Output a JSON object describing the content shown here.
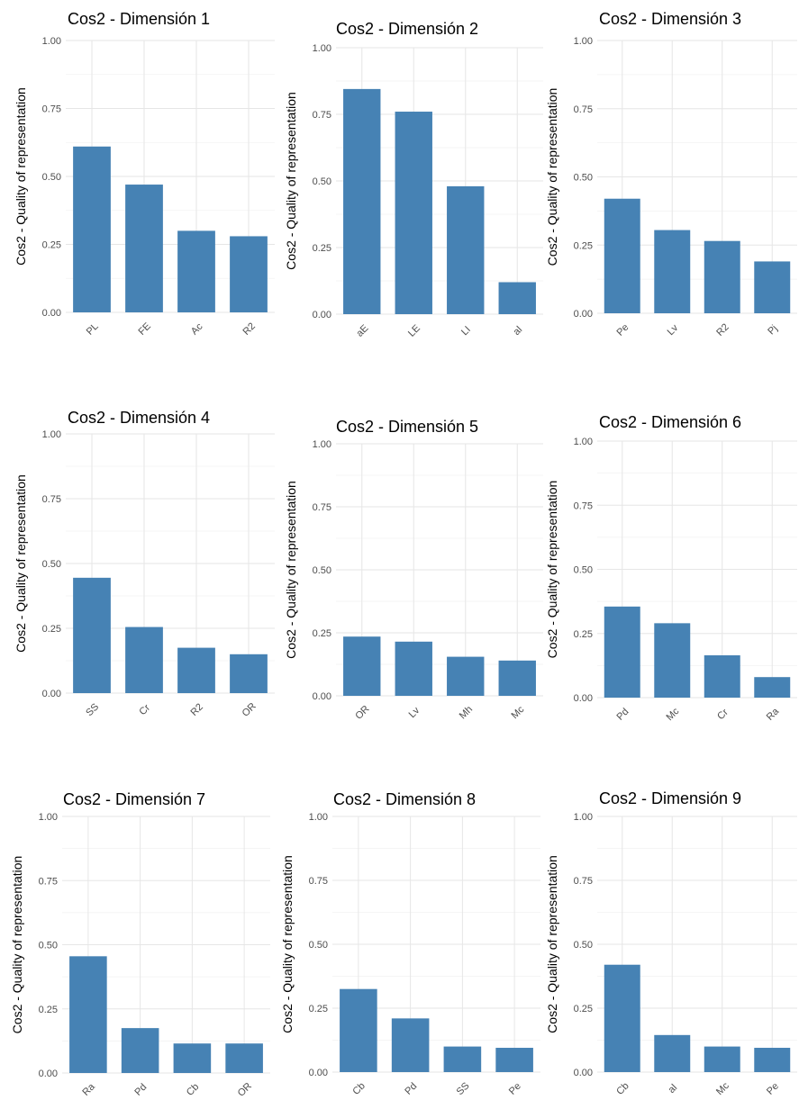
{
  "chart_data": [
    {
      "type": "bar",
      "title": "Cos2 - Dimensión 1",
      "ylabel": "Cos2 - Quality of representation",
      "ylim": [
        0,
        1.0
      ],
      "yticks": [
        "0.00",
        "0.25",
        "0.50",
        "0.75",
        "1.00"
      ],
      "categories": [
        "PL",
        "FE",
        "Ac",
        "R2"
      ],
      "values": [
        0.61,
        0.47,
        0.3,
        0.28
      ],
      "color": "#4682B4"
    },
    {
      "type": "bar",
      "title": "Cos2 - Dimensión 2",
      "ylabel": "Cos2 - Quality of representation",
      "ylim": [
        0,
        1.0
      ],
      "yticks": [
        "0.00",
        "0.25",
        "0.50",
        "0.75",
        "1.00"
      ],
      "categories": [
        "aE",
        "LE",
        "LI",
        "al"
      ],
      "values": [
        0.845,
        0.76,
        0.48,
        0.12
      ],
      "color": "#4682B4"
    },
    {
      "type": "bar",
      "title": "Cos2 - Dimensión 3",
      "ylabel": "Cos2 - Quality of representation",
      "ylim": [
        0,
        1.0
      ],
      "yticks": [
        "0.00",
        "0.25",
        "0.50",
        "0.75",
        "1.00"
      ],
      "categories": [
        "Pe",
        "Lv",
        "R2",
        "Pj"
      ],
      "values": [
        0.42,
        0.305,
        0.265,
        0.19
      ],
      "color": "#4682B4"
    },
    {
      "type": "bar",
      "title": "Cos2 - Dimensión 4",
      "ylabel": "Cos2 - Quality of representation",
      "ylim": [
        0,
        1.0
      ],
      "yticks": [
        "0.00",
        "0.25",
        "0.50",
        "0.75",
        "1.00"
      ],
      "categories": [
        "SS",
        "Cr",
        "R2",
        "OR"
      ],
      "values": [
        0.445,
        0.255,
        0.175,
        0.15
      ],
      "color": "#4682B4"
    },
    {
      "type": "bar",
      "title": "Cos2 - Dimensión 5",
      "ylabel": "Cos2 - Quality of representation",
      "ylim": [
        0,
        1.0
      ],
      "yticks": [
        "0.00",
        "0.25",
        "0.50",
        "0.75",
        "1.00"
      ],
      "categories": [
        "OR",
        "Lv",
        "Mh",
        "Mc"
      ],
      "values": [
        0.235,
        0.215,
        0.155,
        0.14
      ],
      "color": "#4682B4"
    },
    {
      "type": "bar",
      "title": "Cos2 - Dimensión 6",
      "ylabel": "Cos2 - Quality of representation",
      "ylim": [
        0,
        1.0
      ],
      "yticks": [
        "0.00",
        "0.25",
        "0.50",
        "0.75",
        "1.00"
      ],
      "categories": [
        "Pd",
        "Mc",
        "Cr",
        "Ra"
      ],
      "values": [
        0.355,
        0.29,
        0.165,
        0.08
      ],
      "color": "#4682B4"
    },
    {
      "type": "bar",
      "title": "Cos2 - Dimensión 7",
      "ylabel": "Cos2 - Quality of representation",
      "ylim": [
        0,
        1.0
      ],
      "yticks": [
        "0.00",
        "0.25",
        "0.50",
        "0.75",
        "1.00"
      ],
      "categories": [
        "Ra",
        "Pd",
        "Cb",
        "OR"
      ],
      "values": [
        0.455,
        0.175,
        0.115,
        0.115
      ],
      "color": "#4682B4"
    },
    {
      "type": "bar",
      "title": "Cos2 - Dimensión 8",
      "ylabel": "Cos2 - Quality of representation",
      "ylim": [
        0,
        1.0
      ],
      "yticks": [
        "0.00",
        "0.25",
        "0.50",
        "0.75",
        "1.00"
      ],
      "categories": [
        "Cb",
        "Pd",
        "SS",
        "Pe"
      ],
      "values": [
        0.325,
        0.21,
        0.1,
        0.095
      ],
      "color": "#4682B4"
    },
    {
      "type": "bar",
      "title": "Cos2 - Dimensión 9",
      "ylabel": "Cos2 - Quality of representation",
      "ylim": [
        0,
        1.0
      ],
      "yticks": [
        "0.00",
        "0.25",
        "0.50",
        "0.75",
        "1.00"
      ],
      "categories": [
        "Cb",
        "al",
        "Mc",
        "Pe"
      ],
      "values": [
        0.42,
        0.145,
        0.1,
        0.095
      ],
      "color": "#4682B4"
    }
  ]
}
